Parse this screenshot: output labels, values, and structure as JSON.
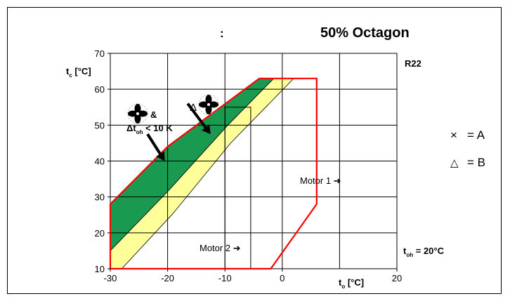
{
  "title": {
    "left": ":",
    "right": "50% Octagon"
  },
  "refrigerant": "R22",
  "ylabel": {
    "main": "t",
    "sub": "c",
    "unit": " [°C]"
  },
  "xlabel": {
    "main": "t",
    "sub": "o",
    "unit": " [°C]"
  },
  "toh": {
    "main": "t",
    "sub": "oh",
    "rest": " = 20°C"
  },
  "annotations": {
    "fan_amp": "&",
    "delta_toh_main": "Δt",
    "delta_toh_sub": "oh",
    "delta_toh_rest": " < 10 K",
    "delta": "Δ",
    "motor1": "Motor 1 ➜",
    "motor2": "Motor 2 ➜"
  },
  "legend": {
    "a_symbol": "×",
    "a_text": "= A",
    "b_symbol": "△",
    "b_text": "= B"
  },
  "chart_data": {
    "type": "area",
    "xlim": [
      -30,
      20
    ],
    "ylim": [
      10,
      70
    ],
    "x_ticks": [
      "-30",
      "-20",
      "-10",
      "0",
      "20"
    ],
    "y_ticks": [
      "10",
      "20",
      "30",
      "40",
      "50",
      "60",
      "70"
    ],
    "grid": true,
    "colors": {
      "envelope": "#ff0000",
      "green": "#1a9a50",
      "yellow": "#ffff99"
    },
    "envelope": [
      [
        -30,
        10
      ],
      [
        -30,
        28
      ],
      [
        -20,
        44
      ],
      [
        -4,
        63
      ],
      [
        6,
        63
      ],
      [
        6,
        28
      ],
      [
        -2,
        10
      ]
    ],
    "green_region": [
      [
        -30,
        15
      ],
      [
        -30,
        28
      ],
      [
        -20,
        44
      ],
      [
        -4,
        63
      ],
      [
        -1.5,
        63
      ],
      [
        -9.5,
        50
      ],
      [
        -20,
        31.5
      ]
    ],
    "yellow_region": [
      [
        -30,
        10
      ],
      [
        -30,
        15
      ],
      [
        -20,
        31.5
      ],
      [
        -9.5,
        50
      ],
      [
        -1.5,
        63
      ],
      [
        2,
        63
      ],
      [
        -9,
        45
      ],
      [
        -19,
        25.5
      ],
      [
        -28,
        10
      ]
    ],
    "inner_box": [
      [
        -10,
        10
      ],
      [
        -10,
        55
      ],
      [
        -5.5,
        55
      ],
      [
        -5.5,
        10
      ]
    ],
    "arrows": [
      {
        "from": [
          -23.5,
          47.5
        ],
        "to": [
          -20.5,
          40
        ]
      },
      {
        "from": [
          -16.5,
          56
        ],
        "to": [
          -12.5,
          47.5
        ]
      }
    ]
  }
}
